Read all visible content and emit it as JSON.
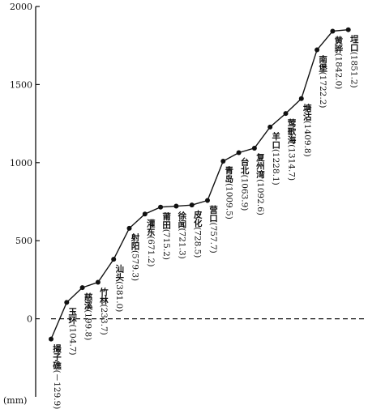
{
  "chart_data": {
    "type": "line",
    "y_label": "(mm)",
    "categories": [
      "撮子礁",
      "玉环",
      "慈溪",
      "竹林",
      "汕头",
      "射阳",
      "灌东",
      "莆田",
      "徐闻",
      "皮化",
      "营口",
      "青岛",
      "台北",
      "复州湾",
      "羊口",
      "莺歌海",
      "塘沽",
      "南堡",
      "黄骅",
      "埕口"
    ],
    "values": [
      -129.9,
      104.7,
      199.8,
      233.7,
      381.0,
      579.3,
      671.2,
      715.2,
      721.3,
      728.5,
      757.7,
      1009.5,
      1063.9,
      1092.6,
      1228.1,
      1314.7,
      1409.8,
      1722.2,
      1842.0,
      1851.2
    ],
    "value_labels": [
      "(－129.9)",
      "(104.7)",
      "(199.8)",
      "(233.7)",
      "(381.0)",
      "(579.3)",
      "(671.2)",
      "(715.2)",
      "(721.3)",
      "(728.5)",
      "(757.7)",
      "(1009.5)",
      "(1063.9)",
      "(1092.6)",
      "(1228.1)",
      "(1314.7)",
      "(1409.8)",
      "(1722.2)",
      "(1842.0)",
      "(1851.2)"
    ],
    "color": "#111111",
    "ylim": [
      -500,
      2000
    ],
    "yticks": [
      0,
      500,
      1000,
      1500,
      2000
    ],
    "zero_line": "dashed"
  }
}
